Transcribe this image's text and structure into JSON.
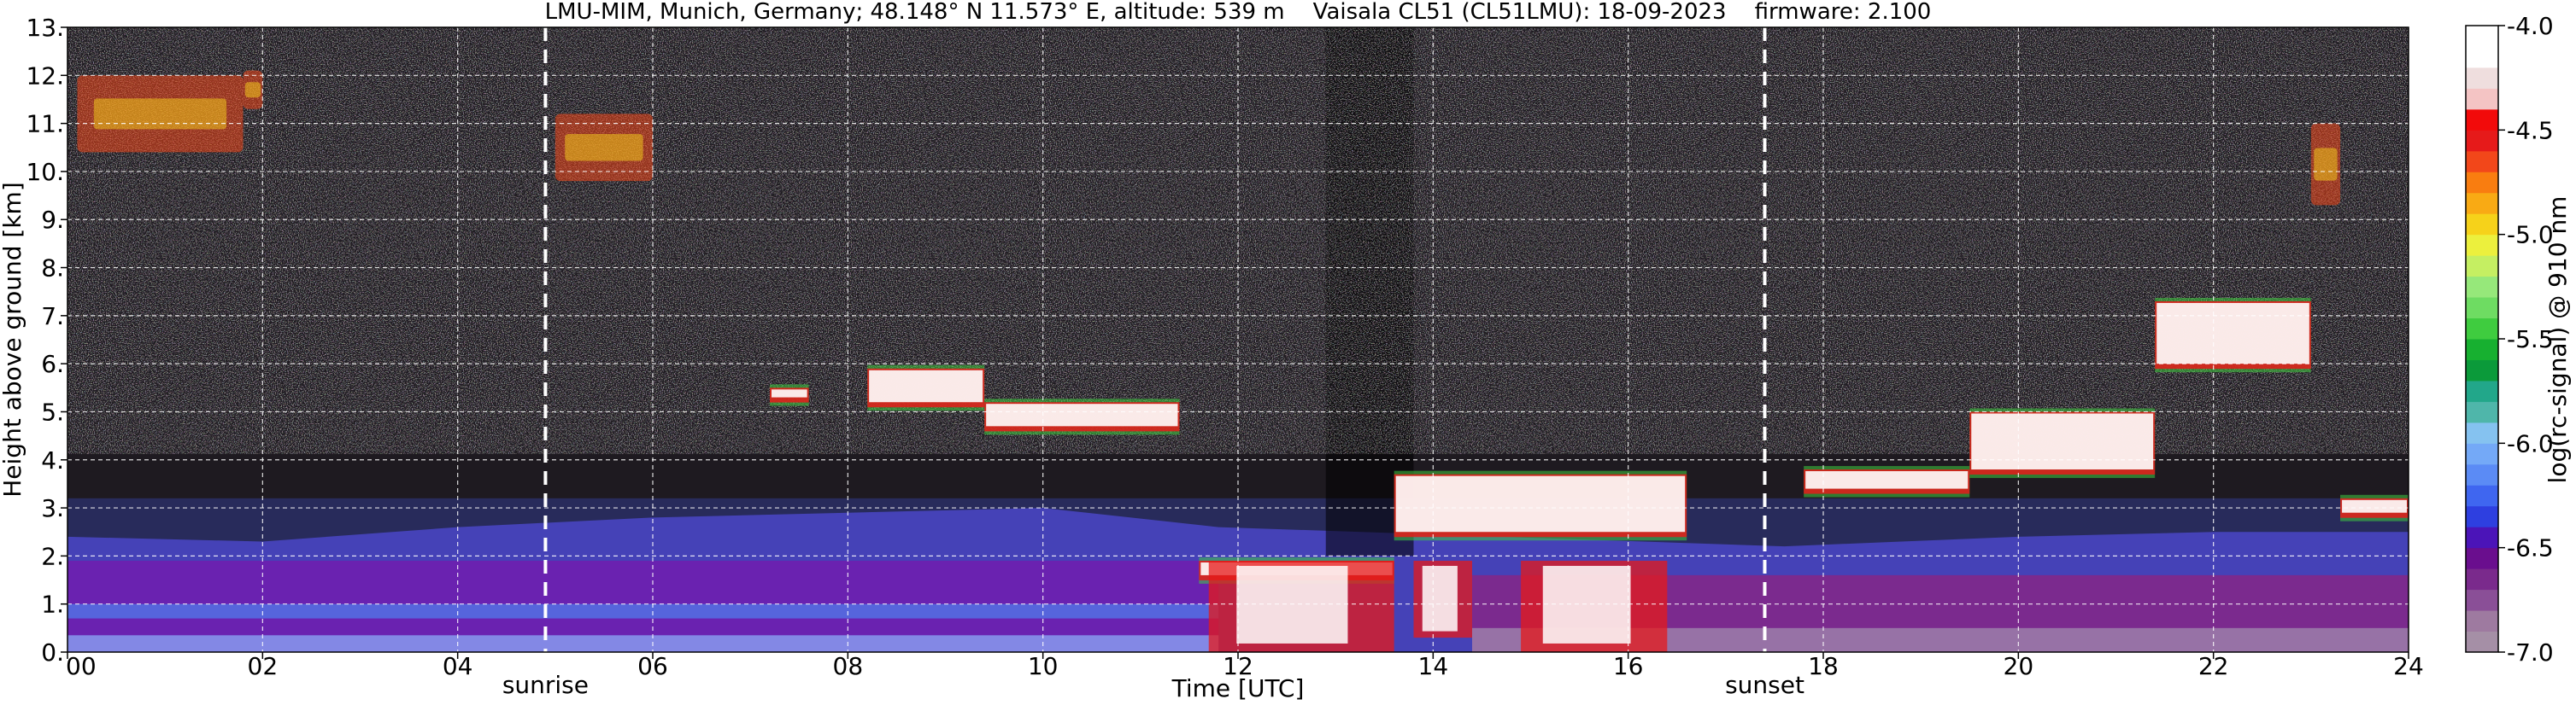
{
  "chart_data": {
    "type": "heatmap",
    "title": "LMU-MIM, Munich, Germany; 48.148° N 11.573° E, altitude: 539 m    Vaisala CL51 (CL51LMU): 18-09-2023    firmware: 2.100",
    "xlabel": "Time [UTC]",
    "ylabel": "Height above ground [km]",
    "colorbar_label": "log(rc-signal) @ 910 nm",
    "xlim": [
      0,
      24
    ],
    "ylim": [
      0,
      13
    ],
    "clim": [
      -7.0,
      -4.0
    ],
    "x_ticks": [
      {
        "value": 0,
        "label": "00"
      },
      {
        "value": 2,
        "label": "02"
      },
      {
        "value": 4,
        "label": "04"
      },
      {
        "value": 6,
        "label": "06"
      },
      {
        "value": 8,
        "label": "08"
      },
      {
        "value": 10,
        "label": "10"
      },
      {
        "value": 12,
        "label": "12"
      },
      {
        "value": 14,
        "label": "14"
      },
      {
        "value": 16,
        "label": "16"
      },
      {
        "value": 18,
        "label": "18"
      },
      {
        "value": 20,
        "label": "20"
      },
      {
        "value": 22,
        "label": "22"
      },
      {
        "value": 24,
        "label": "24"
      }
    ],
    "y_ticks": [
      {
        "value": 0,
        "label": "0."
      },
      {
        "value": 1,
        "label": "1."
      },
      {
        "value": 2,
        "label": "2."
      },
      {
        "value": 3,
        "label": "3."
      },
      {
        "value": 4,
        "label": "4."
      },
      {
        "value": 5,
        "label": "5."
      },
      {
        "value": 6,
        "label": "6."
      },
      {
        "value": 7,
        "label": "7."
      },
      {
        "value": 8,
        "label": "8."
      },
      {
        "value": 9,
        "label": "9."
      },
      {
        "value": 10,
        "label": "10."
      },
      {
        "value": 11,
        "label": "11."
      },
      {
        "value": 12,
        "label": "12."
      },
      {
        "value": 13,
        "label": "13."
      }
    ],
    "colorbar_ticks": [
      {
        "value": -4.0,
        "label": "-4.0"
      },
      {
        "value": -4.5,
        "label": "-4.5"
      },
      {
        "value": -5.0,
        "label": "-5.0"
      },
      {
        "value": -5.5,
        "label": "-5.5"
      },
      {
        "value": -6.0,
        "label": "-6.0"
      },
      {
        "value": -6.5,
        "label": "-6.5"
      },
      {
        "value": -7.0,
        "label": "-7.0"
      }
    ],
    "events": [
      {
        "label": "sunrise",
        "time": 4.9
      },
      {
        "label": "sunset",
        "time": 17.4
      }
    ],
    "colormap": [
      "#a58fa6",
      "#9e7aa0",
      "#8a4f97",
      "#7a2a8c",
      "#6a0e8e",
      "#4b14b8",
      "#2e3fe0",
      "#3f66f0",
      "#5b8bf5",
      "#74a9f7",
      "#85c2f0",
      "#4fb6aa",
      "#22a78a",
      "#0b9a3a",
      "#17b030",
      "#3fcc3f",
      "#6edc62",
      "#96e87a",
      "#c5ef62",
      "#ecf03d",
      "#f6d21a",
      "#f9aa14",
      "#f97d10",
      "#f2471a",
      "#e61a1a",
      "#f20a0a",
      "#f4c4c4",
      "#efdede",
      "#ffffff",
      "#ffffff"
    ],
    "grid": true,
    "features": {
      "boundary_layer": {
        "description_values": "aerosol layer log signal ~ -6.2 to -6.6",
        "points": [
          [
            0,
            2.4
          ],
          [
            2,
            2.3
          ],
          [
            4,
            2.6
          ],
          [
            6,
            2.8
          ],
          [
            8,
            2.9
          ],
          [
            10,
            3.0
          ],
          [
            11.8,
            2.6
          ],
          [
            17.6,
            2.2
          ],
          [
            20,
            2.4
          ],
          [
            22,
            2.5
          ],
          [
            24,
            2.5
          ]
        ]
      },
      "cirrus_layers": [
        {
          "t": [
            0.1,
            1.8
          ],
          "h": [
            10.4,
            12.0
          ]
        },
        {
          "t": [
            1.8,
            2.0
          ],
          "h": [
            11.3,
            12.1
          ]
        },
        {
          "t": [
            5.0,
            6.0
          ],
          "h": [
            9.8,
            11.2
          ]
        },
        {
          "t": [
            23.0,
            23.3
          ],
          "h": [
            9.3,
            11.0
          ]
        }
      ],
      "cloud_bases": [
        {
          "t": [
            7.2,
            7.6
          ],
          "h": [
            5.3,
            5.5
          ]
        },
        {
          "t": [
            8.2,
            9.4
          ],
          "h": [
            5.2,
            5.9
          ]
        },
        {
          "t": [
            9.4,
            11.4
          ],
          "h": [
            4.7,
            5.2
          ]
        },
        {
          "t": [
            11.6,
            13.6
          ],
          "h": [
            1.6,
            1.9
          ]
        },
        {
          "t": [
            13.6,
            16.6
          ],
          "h": [
            2.5,
            3.7
          ]
        },
        {
          "t": [
            17.8,
            19.5
          ],
          "h": [
            3.4,
            3.8
          ]
        },
        {
          "t": [
            19.5,
            21.4
          ],
          "h": [
            3.8,
            5.0
          ]
        },
        {
          "t": [
            21.4,
            23.0
          ],
          "h": [
            6.0,
            7.3
          ]
        },
        {
          "t": [
            23.3,
            24.0
          ],
          "h": [
            2.9,
            3.2
          ]
        }
      ]
    }
  }
}
